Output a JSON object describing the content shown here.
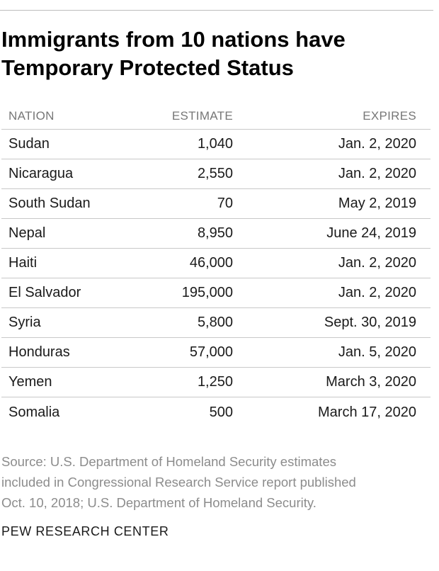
{
  "title_lines": [
    "Immigrants from 10 nations have",
    "Temporary Protected Status"
  ],
  "chart_data": {
    "type": "table",
    "columns": [
      "NATION",
      "ESTIMATE",
      "EXPIRES"
    ],
    "rows": [
      {
        "nation": "Sudan",
        "estimate": "1,040",
        "expires": "Jan. 2, 2020"
      },
      {
        "nation": "Nicaragua",
        "estimate": "2,550",
        "expires": "Jan. 2, 2020"
      },
      {
        "nation": "South Sudan",
        "estimate": "70",
        "expires": "May 2, 2019"
      },
      {
        "nation": "Nepal",
        "estimate": "8,950",
        "expires": "June 24, 2019"
      },
      {
        "nation": "Haiti",
        "estimate": "46,000",
        "expires": "Jan. 2, 2020"
      },
      {
        "nation": "El Salvador",
        "estimate": "195,000",
        "expires": "Jan. 2, 2020"
      },
      {
        "nation": "Syria",
        "estimate": "5,800",
        "expires": "Sept. 30, 2019"
      },
      {
        "nation": "Honduras",
        "estimate": "57,000",
        "expires": "Jan. 5, 2020"
      },
      {
        "nation": "Yemen",
        "estimate": "1,250",
        "expires": "March 3, 2020"
      },
      {
        "nation": "Somalia",
        "estimate": "500",
        "expires": "March 17, 2020"
      }
    ]
  },
  "source_lines": [
    "Source: U.S. Department of Homeland Security estimates",
    "included in Congressional Research Service report published",
    "Oct. 10, 2018; U.S. Department of Homeland Security."
  ],
  "brand": "PEW RESEARCH CENTER"
}
